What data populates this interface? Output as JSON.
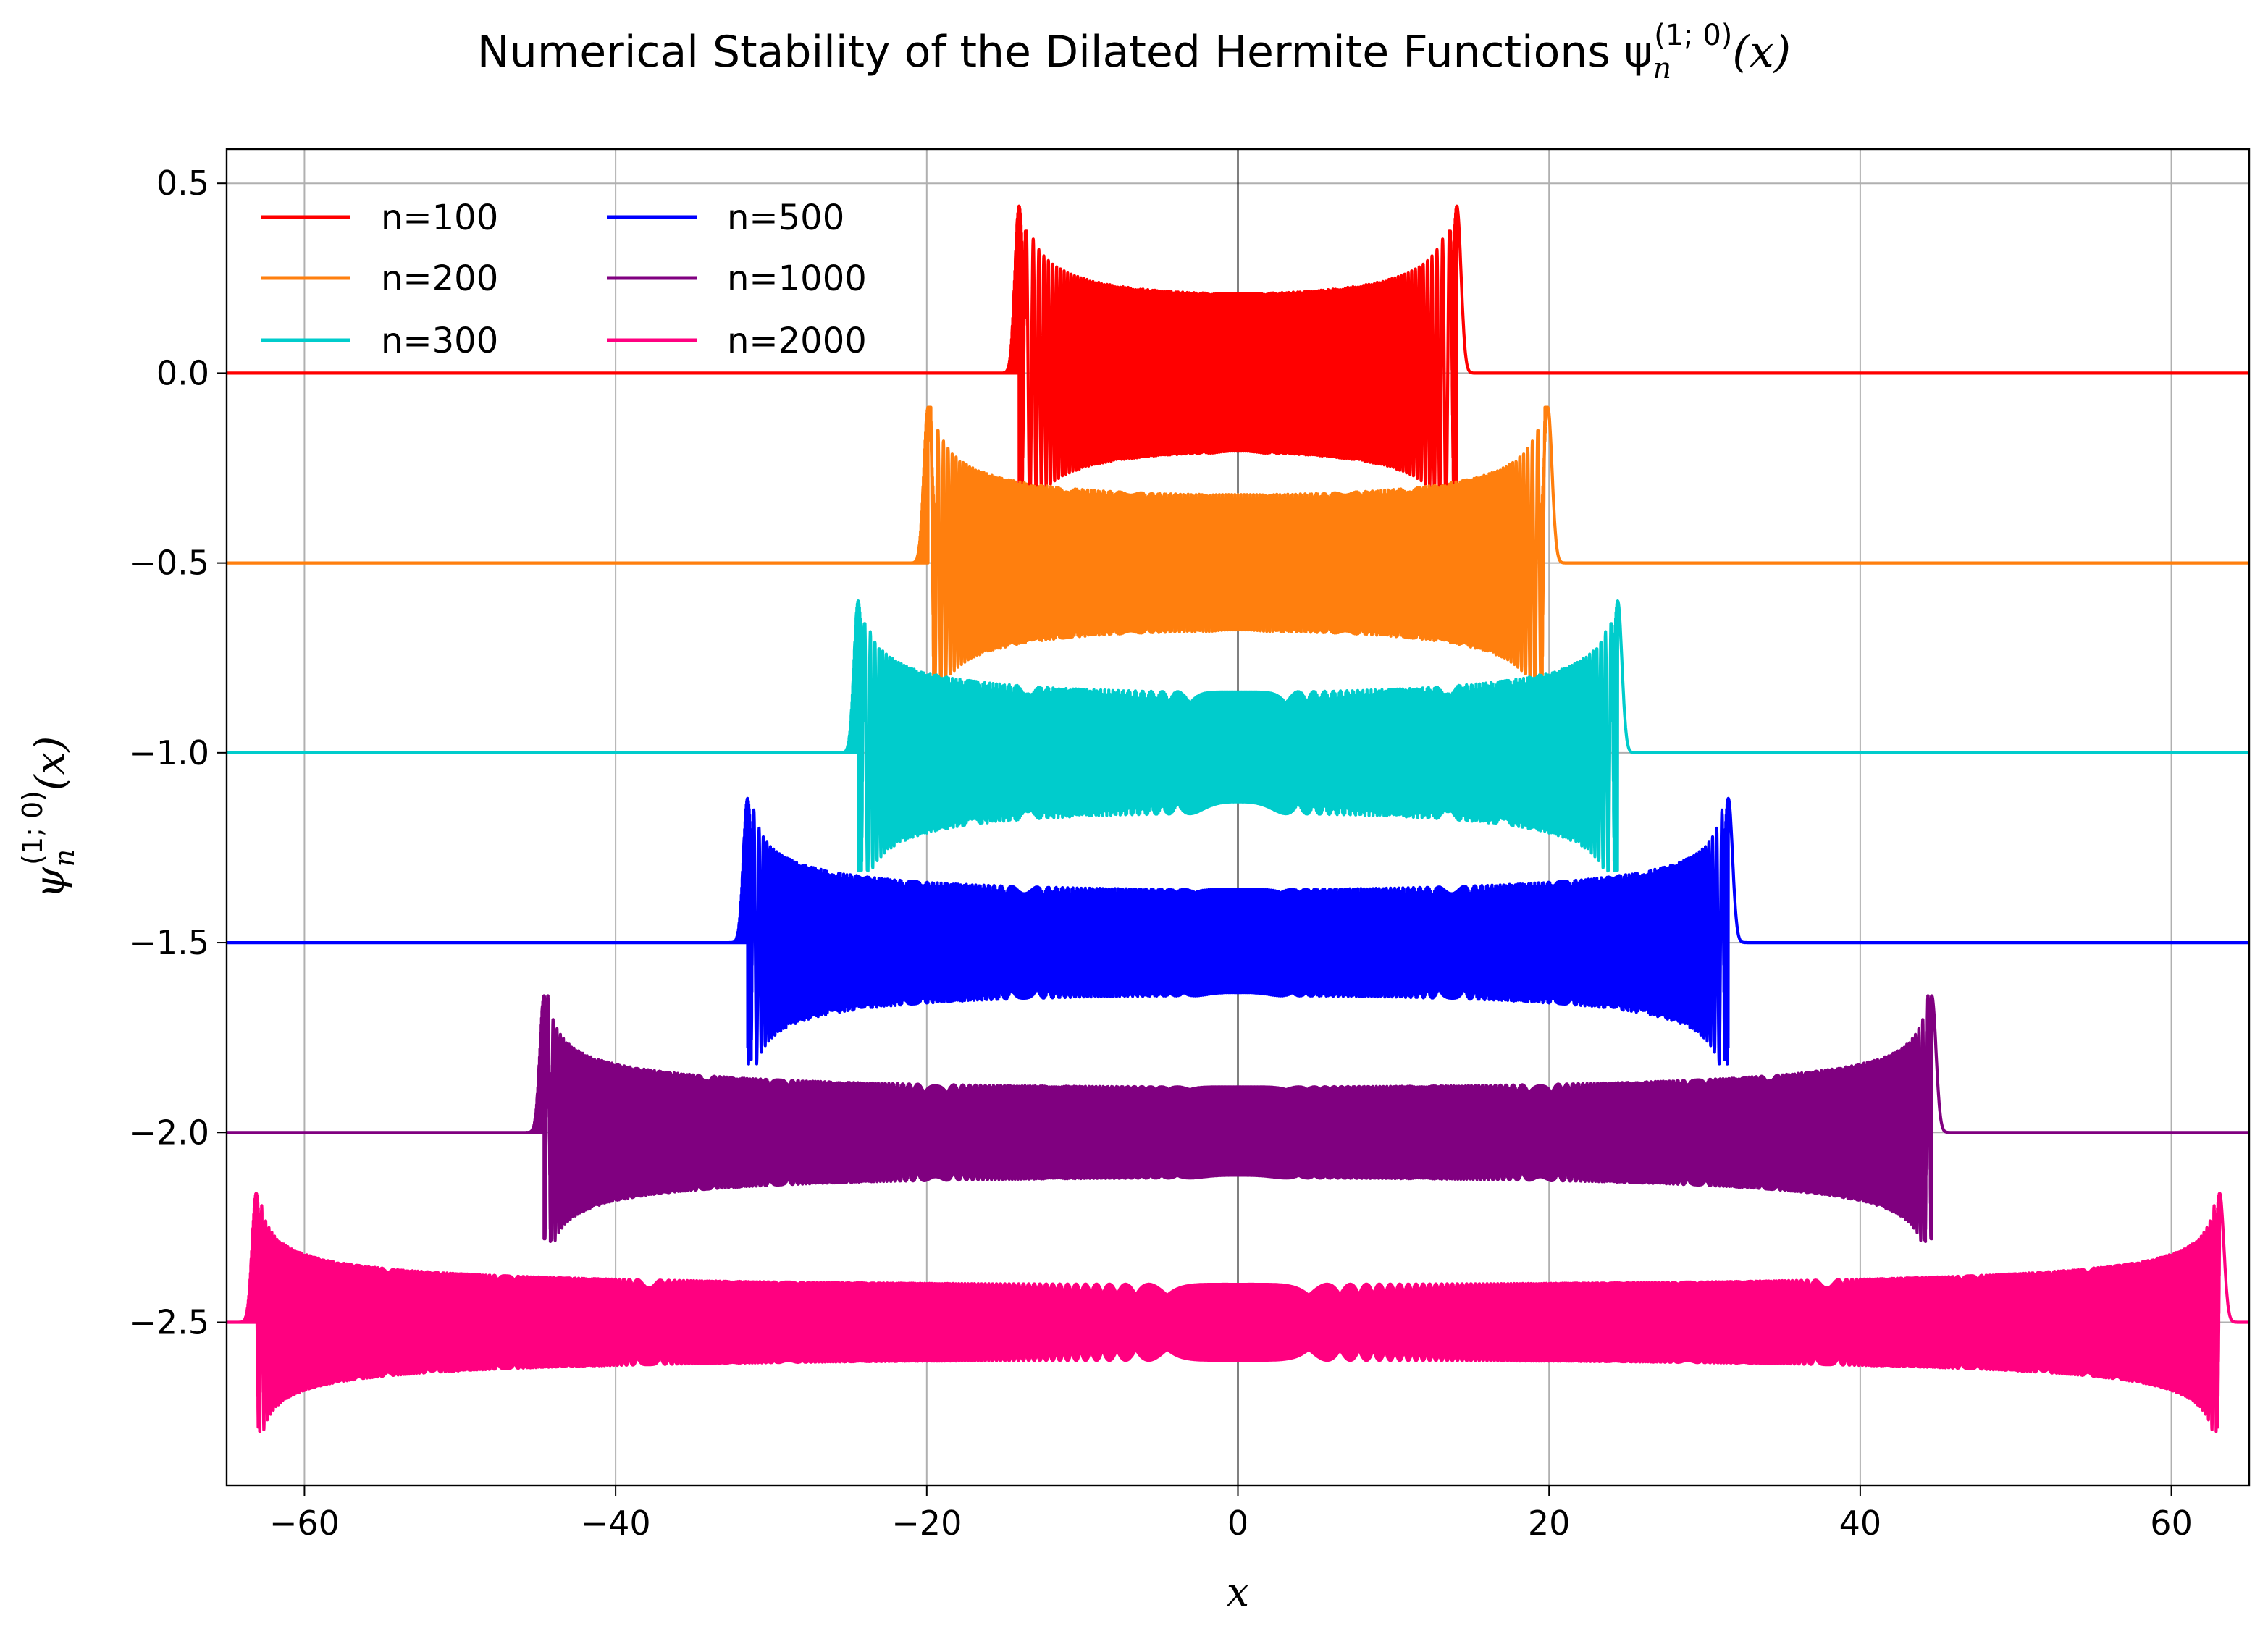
{
  "chart_data": {
    "type": "line",
    "title": "Numerical Stability of the Dilated Hermite Functions ψ",
    "title_math": {
      "symbol": "ψ",
      "sub": "n",
      "sup": "(1; 0)",
      "arg": "(x)"
    },
    "xlabel": "x",
    "ylabel": "ψ",
    "ylabel_math": {
      "symbol": "ψ",
      "sub": "n",
      "sup": "(1; 0)",
      "arg": "(x)"
    },
    "xlim": [
      -65,
      65
    ],
    "ylim": [
      -2.93,
      0.59
    ],
    "x_ticks": [
      -60,
      -40,
      -20,
      0,
      20,
      40,
      60
    ],
    "x_tick_labels": [
      "−60",
      "−40",
      "−20",
      "0",
      "20",
      "40",
      "60"
    ],
    "y_ticks": [
      0.5,
      0.0,
      -0.5,
      -1.0,
      -1.5,
      -2.0,
      -2.5
    ],
    "y_tick_labels": [
      "0.5",
      "0.0",
      "−0.5",
      "−1.0",
      "−1.5",
      "−2.0",
      "−2.5"
    ],
    "grid": true,
    "zero_lines": true,
    "legend_position": "top-left",
    "legend_columns": 2,
    "series": [
      {
        "name": "n=100",
        "n": 100,
        "offset": 0.0,
        "color": "#ff0000",
        "edge": 14.07,
        "center_amplitude": 0.21,
        "peak": 0.44,
        "trough": -0.3
      },
      {
        "name": "n=200",
        "n": 200,
        "offset": -0.5,
        "color": "#ff7f0e",
        "edge": 19.92,
        "center_amplitude": 0.18,
        "peak": 0.41,
        "trough": -0.3
      },
      {
        "name": "n=300",
        "n": 300,
        "offset": -1.0,
        "color": "#00cccc",
        "edge": 24.41,
        "center_amplitude": 0.16,
        "peak": 0.4,
        "trough": -0.31
      },
      {
        "name": "n=500",
        "n": 500,
        "offset": -1.5,
        "color": "#0000ff",
        "edge": 31.52,
        "center_amplitude": 0.14,
        "peak": 0.38,
        "trough": -0.3
      },
      {
        "name": "n=1000",
        "n": 1000,
        "offset": -2.0,
        "color": "#800080",
        "edge": 44.6,
        "center_amplitude": 0.12,
        "peak": 0.36,
        "trough": -0.28
      },
      {
        "name": "n=2000",
        "n": 2000,
        "offset": -2.5,
        "color": "#ff0080",
        "edge": 63.1,
        "center_amplitude": 0.1,
        "peak": 0.34,
        "trough": -0.27
      }
    ]
  }
}
